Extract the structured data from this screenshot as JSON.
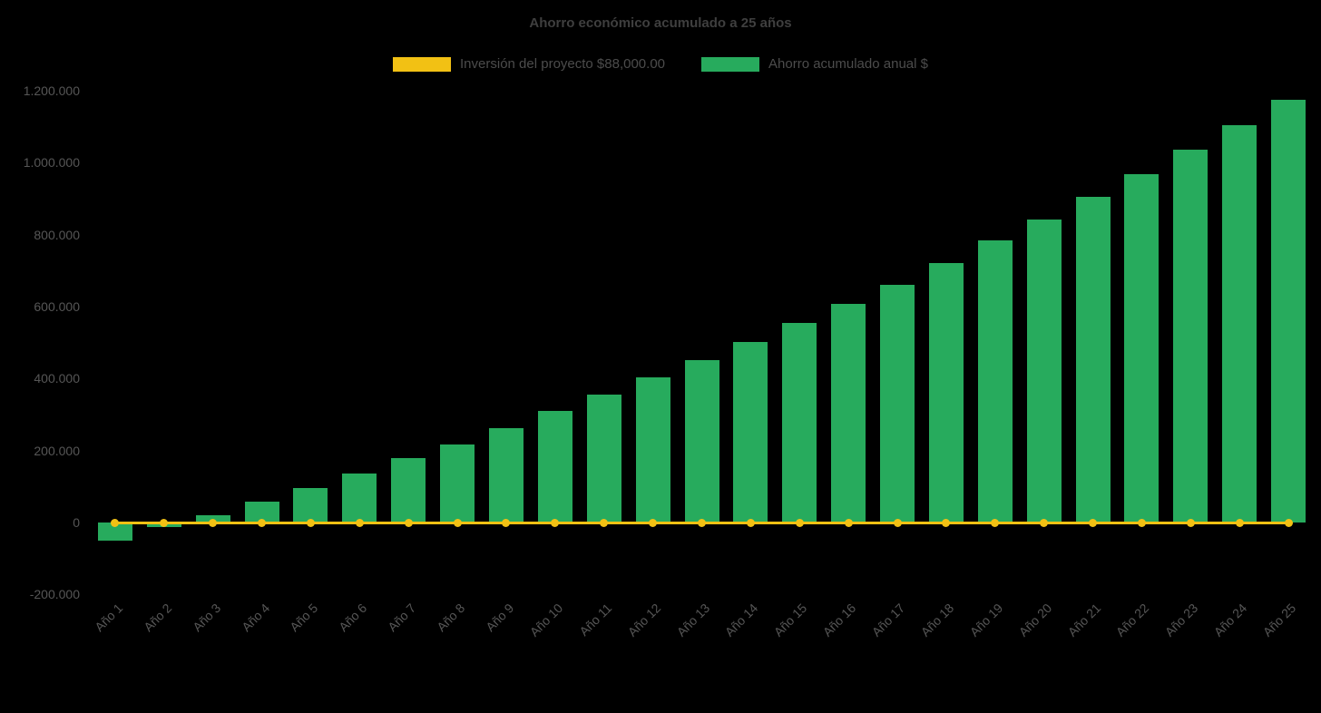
{
  "chart_data": {
    "type": "bar",
    "title": "Ahorro económico acumulado a 25 años",
    "legend_position": "top",
    "grid": false,
    "background_color": "#000000",
    "text_color": "#565656",
    "categories": [
      "Año 1",
      "Año 2",
      "Año 3",
      "Año 4",
      "Año 5",
      "Año 6",
      "Año 7",
      "Año 8",
      "Año 9",
      "Año 10",
      "Año 11",
      "Año 12",
      "Año 13",
      "Año 14",
      "Año 15",
      "Año 16",
      "Año 17",
      "Año 18",
      "Año 19",
      "Año 20",
      "Año 21",
      "Año 22",
      "Año 23",
      "Año 24",
      "Año 25"
    ],
    "series": [
      {
        "name": "Inversión del proyecto $88,000.00",
        "type": "line",
        "color": "#f2c114",
        "values": [
          0,
          0,
          0,
          0,
          0,
          0,
          0,
          0,
          0,
          0,
          0,
          0,
          0,
          0,
          0,
          0,
          0,
          0,
          0,
          0,
          0,
          0,
          0,
          0,
          0
        ]
      },
      {
        "name": "Ahorro acumulado anual $",
        "type": "bar",
        "color": "#27ab5d",
        "values": [
          -50000,
          -12000,
          20000,
          57000,
          96000,
          137000,
          178000,
          218000,
          263000,
          310000,
          355000,
          403000,
          451000,
          501000,
          555000,
          607000,
          661000,
          720000,
          783000,
          843000,
          906000,
          968000,
          1036000,
          1103000,
          1175000
        ]
      }
    ],
    "ylim": [
      -200000,
      1200000
    ],
    "y_ticks": [
      -200000,
      0,
      200000,
      400000,
      600000,
      800000,
      1000000,
      1200000
    ],
    "y_tick_labels": [
      "-200.000",
      "0",
      "200.000",
      "400.000",
      "600.000",
      "800.000",
      "1.000.000",
      "1.200.000"
    ],
    "xlabel": "",
    "ylabel": ""
  }
}
